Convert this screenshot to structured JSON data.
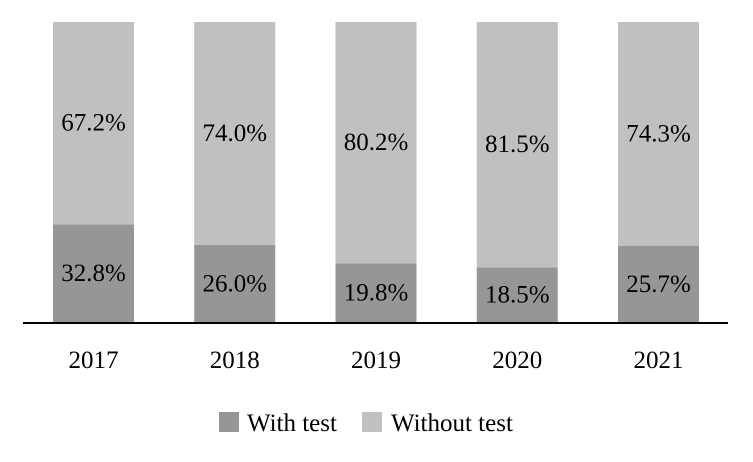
{
  "chart_data": {
    "type": "bar",
    "stacked": true,
    "percent": true,
    "categories": [
      "2017",
      "2018",
      "2019",
      "2020",
      "2021"
    ],
    "series": [
      {
        "name": "With test",
        "color": "#969696",
        "values": [
          32.8,
          26.0,
          19.8,
          18.5,
          25.7
        ],
        "labels": [
          "32.8%",
          "26.0%",
          "19.8%",
          "18.5%",
          "25.7%"
        ]
      },
      {
        "name": "Without test",
        "color": "#c0c0c0",
        "values": [
          67.2,
          74.0,
          80.2,
          81.5,
          74.3
        ],
        "labels": [
          "67.2%",
          "74.0%",
          "80.2%",
          "81.5%",
          "74.3%"
        ]
      }
    ],
    "ylim": [
      0,
      100
    ],
    "grid": false,
    "legend_position": "bottom"
  }
}
